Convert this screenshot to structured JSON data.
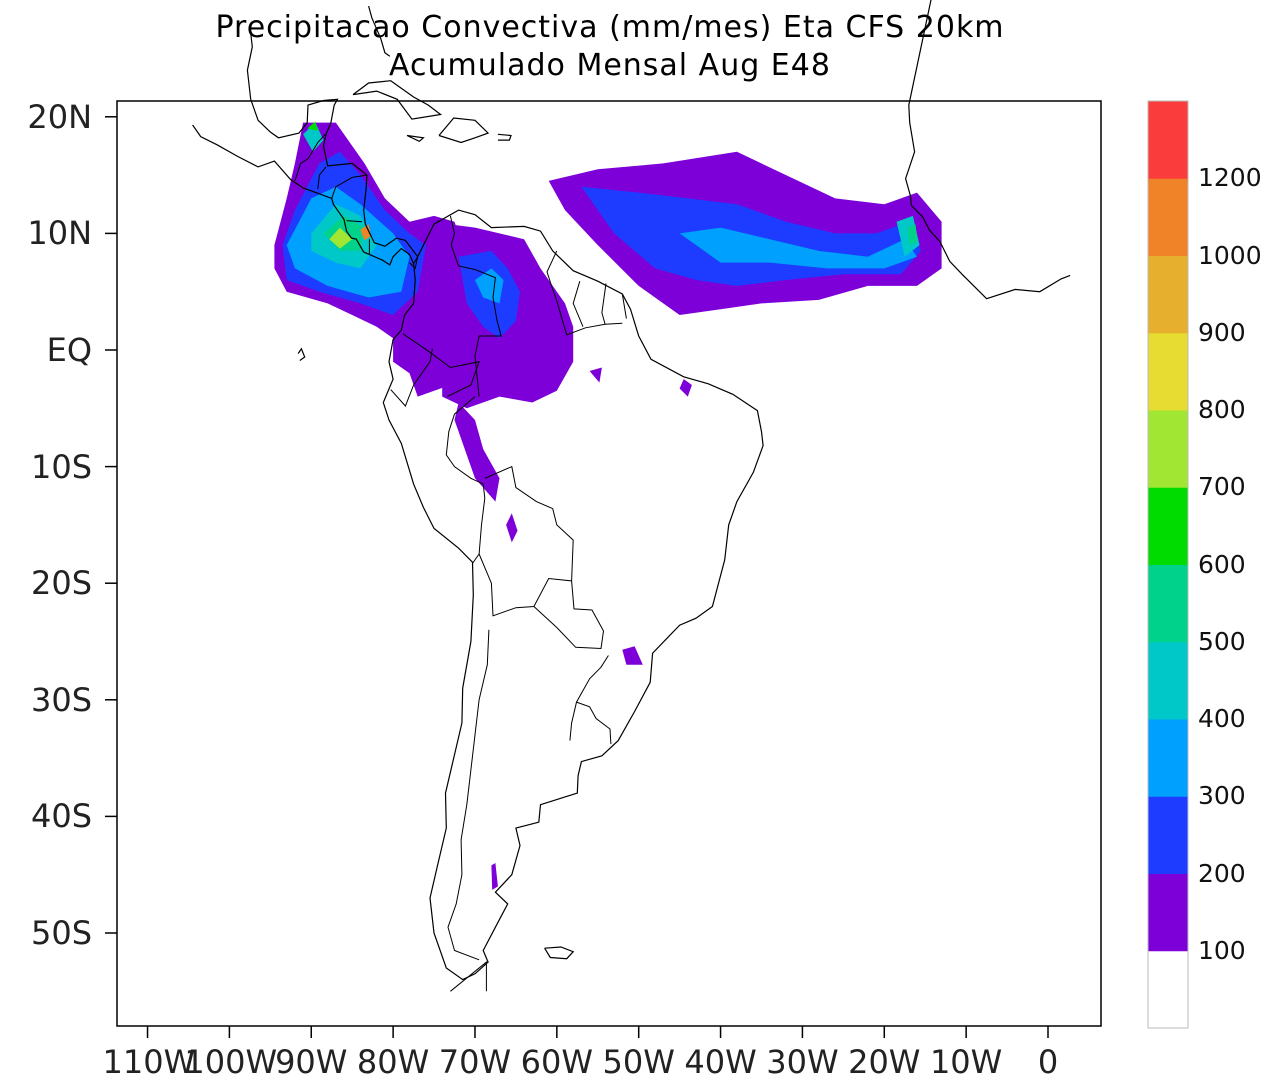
{
  "title_line1": "Precipitacao Convectiva (mm/mes) Eta CFS 20km",
  "title_line2": "Acumulado Mensal Aug  E48",
  "map": {
    "y_ticks": [
      {
        "lat": 20,
        "label": "20N"
      },
      {
        "lat": 10,
        "label": "10N"
      },
      {
        "lat": 0,
        "label": "EQ"
      },
      {
        "lat": -10,
        "label": "10S"
      },
      {
        "lat": -20,
        "label": "20S"
      },
      {
        "lat": -30,
        "label": "30S"
      },
      {
        "lat": -40,
        "label": "40S"
      },
      {
        "lat": -50,
        "label": "50S"
      }
    ],
    "x_ticks": [
      {
        "lon": -110,
        "label": "110W"
      },
      {
        "lon": -100,
        "label": "100W"
      },
      {
        "lon": -90,
        "label": "90W"
      },
      {
        "lon": -80,
        "label": "80W"
      },
      {
        "lon": -70,
        "label": "70W"
      },
      {
        "lon": -60,
        "label": "60W"
      },
      {
        "lon": -50,
        "label": "50W"
      },
      {
        "lon": -40,
        "label": "40W"
      },
      {
        "lon": -30,
        "label": "30W"
      },
      {
        "lon": -20,
        "label": "20W"
      },
      {
        "lon": -10,
        "label": "10W"
      },
      {
        "lon": 0,
        "label": "0"
      }
    ]
  },
  "colorbar": {
    "colors": [
      "#ffffff",
      "#7d00d9",
      "#1e3cff",
      "#00a0ff",
      "#00c8c8",
      "#00d28c",
      "#00dc00",
      "#a0e632",
      "#e6dc32",
      "#e6af2d",
      "#f08228",
      "#fa3c3c"
    ],
    "labels": [
      "100",
      "200",
      "300",
      "400",
      "500",
      "600",
      "700",
      "800",
      "900",
      "1000",
      "1200"
    ]
  }
}
